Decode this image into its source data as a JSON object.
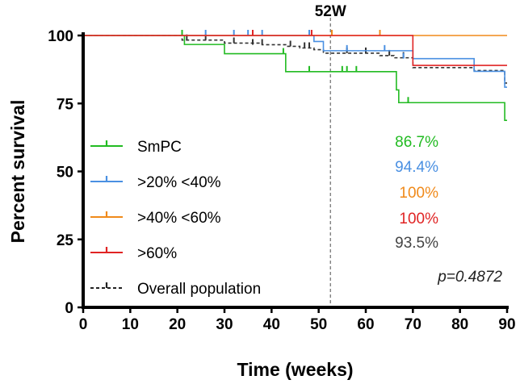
{
  "chart_data": {
    "type": "line",
    "subtype": "kaplan-meier",
    "xlabel": "Time (weeks)",
    "ylabel": "Percent survival",
    "xlim": [
      0,
      90
    ],
    "ylim": [
      0,
      100
    ],
    "xticks": [
      0,
      10,
      20,
      30,
      40,
      50,
      60,
      70,
      80,
      90
    ],
    "yticks": [
      0,
      25,
      50,
      75,
      100
    ],
    "xtick_labels": [
      "0",
      "10",
      "20",
      "30",
      "40",
      "50",
      "60",
      "70",
      "80",
      "90"
    ],
    "ytick_labels": [
      "0",
      "25",
      "50",
      "75",
      "100"
    ],
    "reference_line": {
      "x": 52.5,
      "label": "52W"
    },
    "p_value": "p=0.4872",
    "series": [
      {
        "name": "SmPC",
        "color": "#22bb22",
        "dash": false,
        "steps": [
          [
            0,
            100
          ],
          [
            21.5,
            96.7
          ],
          [
            30,
            93.3
          ],
          [
            43,
            86.7
          ],
          [
            66.5,
            80
          ],
          [
            67,
            75.3
          ],
          [
            89.5,
            68.8
          ],
          [
            90,
            68.8
          ]
        ],
        "censors": [
          [
            21,
            100
          ],
          [
            42.5,
            93.3
          ],
          [
            48,
            86.7
          ],
          [
            55,
            86.7
          ],
          [
            56,
            86.7
          ],
          [
            58,
            86.7
          ],
          [
            69,
            75.3
          ]
        ]
      },
      {
        "name": ">20% <40%",
        "color": "#4a90e2",
        "dash": false,
        "steps": [
          [
            0,
            100
          ],
          [
            49,
            97.8
          ],
          [
            51,
            94.4
          ],
          [
            70,
            91.5
          ],
          [
            83,
            86.8
          ],
          [
            89.5,
            81
          ],
          [
            90,
            81
          ]
        ],
        "censors": [
          [
            26,
            100
          ],
          [
            32,
            100
          ],
          [
            35,
            100
          ],
          [
            38,
            100
          ],
          [
            48,
            100
          ],
          [
            56,
            94.4
          ],
          [
            64,
            94.4
          ],
          [
            68,
            91.5
          ]
        ]
      },
      {
        "name": ">40% <60%",
        "color": "#f08a1a",
        "dash": false,
        "steps": [
          [
            0,
            100
          ],
          [
            90,
            100
          ]
        ],
        "censors": [
          [
            52.8,
            100
          ],
          [
            63,
            100
          ]
        ]
      },
      {
        "name": ">60%",
        "color": "#e02424",
        "dash": false,
        "steps": [
          [
            0,
            100
          ],
          [
            70,
            89
          ],
          [
            90,
            89
          ]
        ],
        "censors": [
          [
            36,
            100
          ],
          [
            48.5,
            100
          ]
        ]
      },
      {
        "name": "Overall population",
        "color": "#333333",
        "dash": true,
        "steps": [
          [
            0,
            100
          ],
          [
            21,
            98.3
          ],
          [
            30,
            97.2
          ],
          [
            38,
            96.6
          ],
          [
            43,
            96
          ],
          [
            46,
            95.4
          ],
          [
            49,
            94.8
          ],
          [
            51,
            93.5
          ],
          [
            63,
            92.6
          ],
          [
            66,
            91.8
          ],
          [
            70,
            88.2
          ],
          [
            83,
            87.1
          ],
          [
            89.5,
            82.5
          ],
          [
            90,
            82.5
          ]
        ],
        "censors": [
          [
            22,
            98.3
          ],
          [
            26,
            98.3
          ],
          [
            32,
            97.2
          ],
          [
            36,
            96.6
          ],
          [
            38,
            96.6
          ],
          [
            44,
            96
          ],
          [
            47,
            95.4
          ],
          [
            48,
            95.4
          ],
          [
            56,
            93.5
          ],
          [
            60,
            93.5
          ],
          [
            65,
            92.6
          ],
          [
            68,
            91.8
          ]
        ]
      }
    ],
    "annotations": [
      {
        "text": "86.7%",
        "color": "#22bb22"
      },
      {
        "text": "94.4%",
        "color": "#4a90e2"
      },
      {
        "text": "100%",
        "color": "#f08a1a"
      },
      {
        "text": "100%",
        "color": "#e02424"
      },
      {
        "text": "93.5%",
        "color": "#444444"
      }
    ],
    "legend": [
      {
        "label": "SmPC",
        "color": "#22bb22",
        "dash": false
      },
      {
        "label": ">20% <40%",
        "color": "#4a90e2",
        "dash": false
      },
      {
        "label": ">40% <60%",
        "color": "#f08a1a",
        "dash": false
      },
      {
        "label": ">60%",
        "color": "#e02424",
        "dash": false
      },
      {
        "label": "Overall population",
        "color": "#222222",
        "dash": true
      }
    ]
  }
}
